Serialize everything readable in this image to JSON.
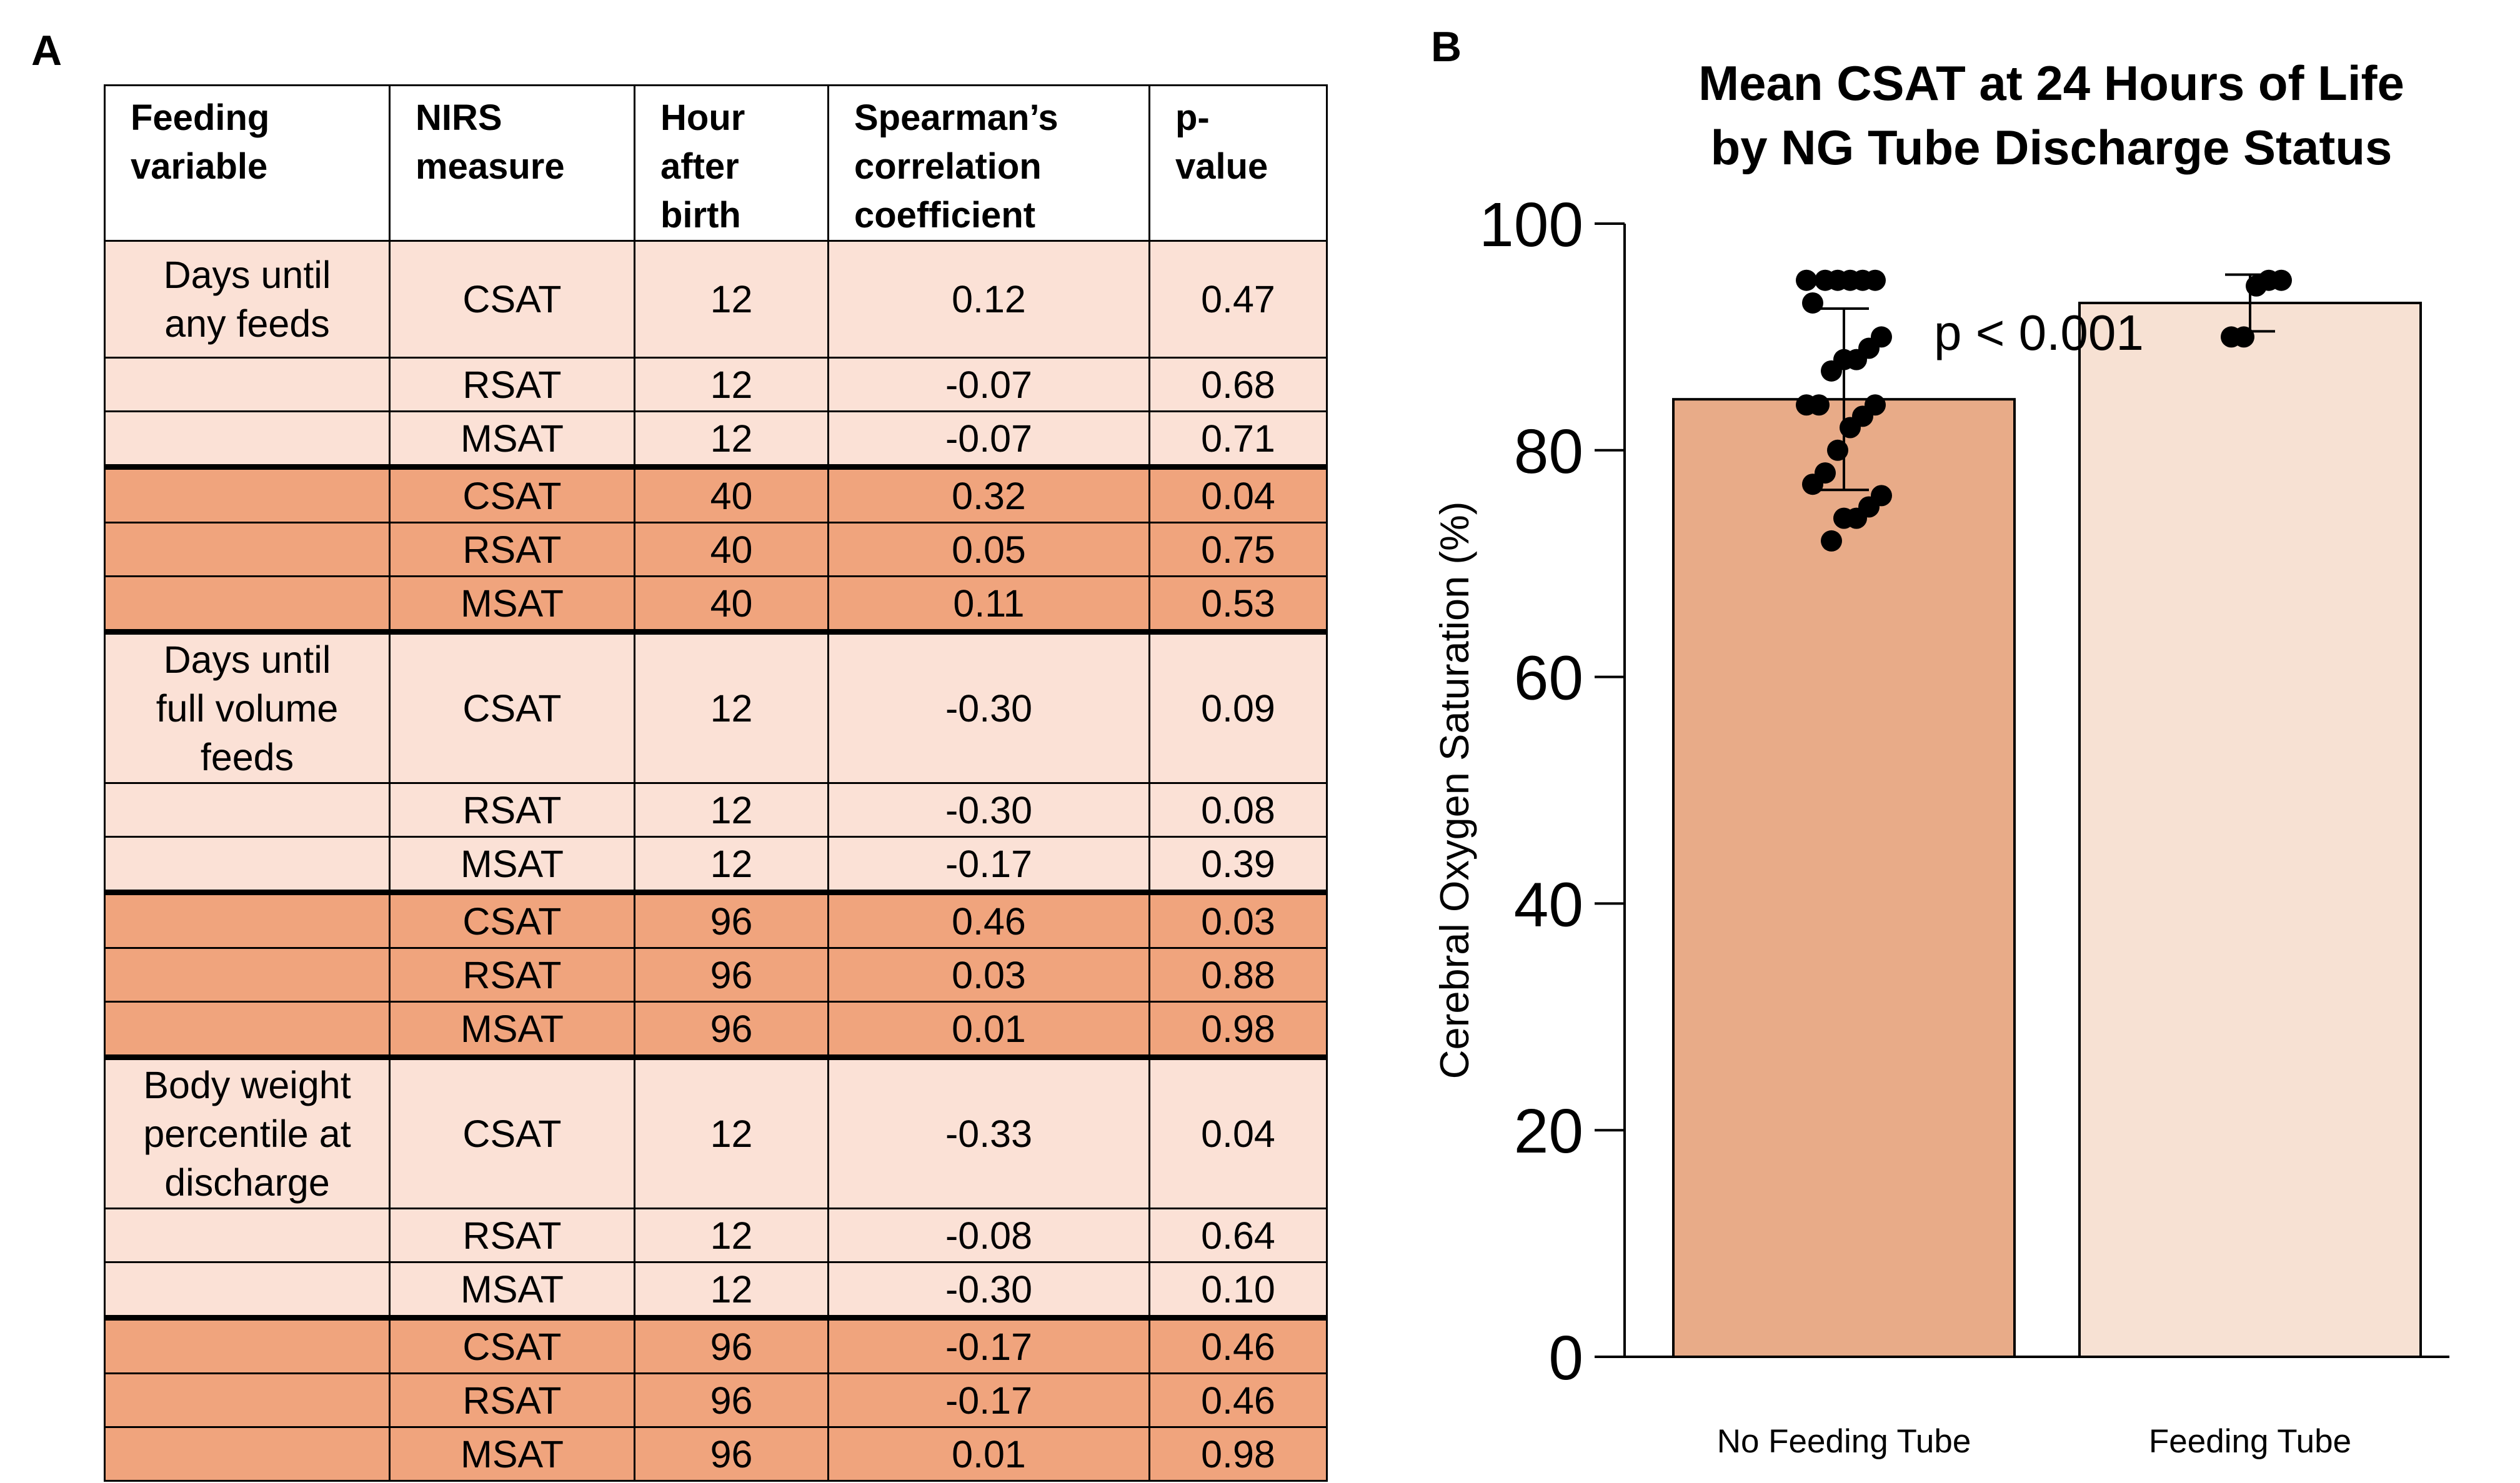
{
  "panel_a": {
    "letter": "A",
    "headers": [
      "Feeding\nvariable",
      "NIRS\nmeasure",
      "Hour\nafter\nbirth",
      "Spearman’s\ncorrelation\ncoefficient",
      "p-\nvalue"
    ],
    "rows": [
      {
        "variable": "Days until\nany feeds",
        "measure": "CSAT",
        "hour": "12",
        "coef": "0.12",
        "p": "0.47",
        "shade": "light"
      },
      {
        "variable": "",
        "measure": "RSAT",
        "hour": "12",
        "coef": "-0.07",
        "p": "0.68",
        "shade": "light"
      },
      {
        "variable": "",
        "measure": "MSAT",
        "hour": "12",
        "coef": "-0.07",
        "p": "0.71",
        "shade": "light"
      },
      {
        "variable": "",
        "measure": "CSAT",
        "hour": "40",
        "coef": "0.32",
        "p": "0.04",
        "shade": "dark"
      },
      {
        "variable": "",
        "measure": "RSAT",
        "hour": "40",
        "coef": "0.05",
        "p": "0.75",
        "shade": "dark"
      },
      {
        "variable": "",
        "measure": "MSAT",
        "hour": "40",
        "coef": "0.11",
        "p": "0.53",
        "shade": "dark"
      },
      {
        "variable": "Days until\nfull volume\nfeeds",
        "measure": "CSAT",
        "hour": "12",
        "coef": "-0.30",
        "p": "0.09",
        "shade": "light"
      },
      {
        "variable": "",
        "measure": "RSAT",
        "hour": "12",
        "coef": "-0.30",
        "p": "0.08",
        "shade": "light"
      },
      {
        "variable": "",
        "measure": "MSAT",
        "hour": "12",
        "coef": "-0.17",
        "p": "0.39",
        "shade": "light"
      },
      {
        "variable": "",
        "measure": "CSAT",
        "hour": "96",
        "coef": "0.46",
        "p": "0.03",
        "shade": "dark"
      },
      {
        "variable": "",
        "measure": "RSAT",
        "hour": "96",
        "coef": "0.03",
        "p": "0.88",
        "shade": "dark"
      },
      {
        "variable": "",
        "measure": "MSAT",
        "hour": "96",
        "coef": "0.01",
        "p": "0.98",
        "shade": "dark"
      },
      {
        "variable": "Body weight\npercentile at\ndischarge",
        "measure": "CSAT",
        "hour": "12",
        "coef": "-0.33",
        "p": "0.04",
        "shade": "light"
      },
      {
        "variable": "",
        "measure": "RSAT",
        "hour": "12",
        "coef": "-0.08",
        "p": "0.64",
        "shade": "light"
      },
      {
        "variable": "",
        "measure": "MSAT",
        "hour": "12",
        "coef": "-0.30",
        "p": "0.10",
        "shade": "light"
      },
      {
        "variable": "",
        "measure": "CSAT",
        "hour": "96",
        "coef": "-0.17",
        "p": "0.46",
        "shade": "dark"
      },
      {
        "variable": "",
        "measure": "RSAT",
        "hour": "96",
        "coef": "-0.17",
        "p": "0.46",
        "shade": "dark"
      },
      {
        "variable": "",
        "measure": "MSAT",
        "hour": "96",
        "coef": "0.01",
        "p": "0.98",
        "shade": "dark"
      }
    ],
    "colors": {
      "light": "#fbe1d6",
      "dark": "#f0a47d"
    }
  },
  "panel_b": {
    "letter": "B"
  },
  "chart_data": {
    "type": "bar",
    "title": "Mean CSAT at 24 Hours of Life\nby NG Tube Discharge Status",
    "xlabel": "",
    "ylabel": "Cerebral Oxygen Saturation (%)",
    "ylim": [
      0,
      100
    ],
    "yticks": [
      0,
      20,
      40,
      60,
      80,
      100
    ],
    "categories": [
      "No Feeding Tube",
      "Feeding Tube"
    ],
    "values": [
      84.5,
      93
    ],
    "error_bars": [
      [
        76.5,
        92.5
      ],
      [
        90.5,
        95.5
      ]
    ],
    "bar_colors": [
      "#e8ab88",
      "#f7e1d3"
    ],
    "points": [
      [
        95,
        95,
        95,
        95,
        95,
        95,
        93,
        90,
        89,
        88,
        88,
        87,
        84,
        84,
        84,
        83,
        82,
        80,
        78,
        77,
        76,
        75,
        74,
        74,
        72
      ],
      [
        95,
        95,
        94.5,
        90,
        90
      ]
    ],
    "annotations": [
      {
        "text": "p < 0.001"
      }
    ],
    "grid": false
  }
}
